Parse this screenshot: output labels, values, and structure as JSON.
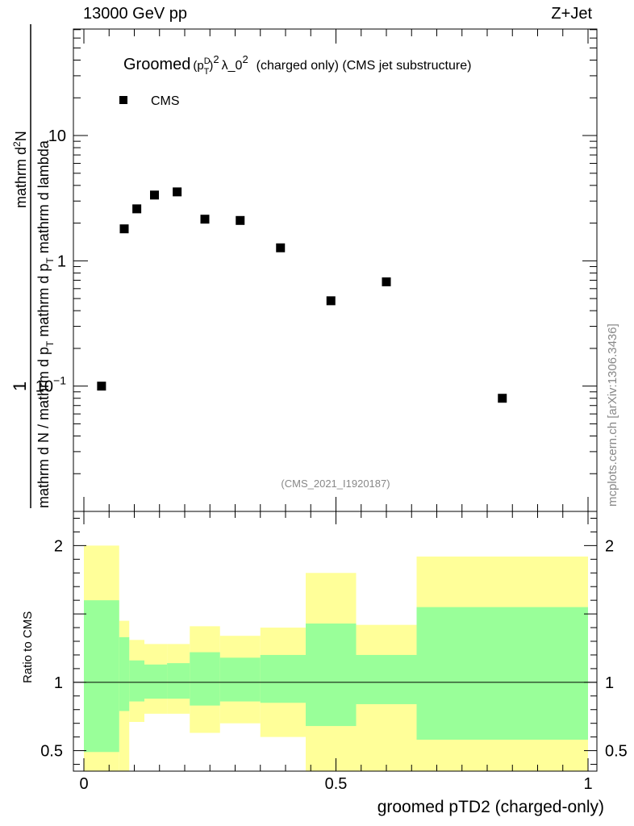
{
  "header": {
    "energy_label": "13000 GeV pp",
    "process_label": "Z+Jet"
  },
  "chart_data": {
    "type": "scatter",
    "title": "Groomed (p_T^D)^2 λ_0^2 (charged only) (CMS jet substructure)",
    "title_parts": {
      "prefix": "Groomed",
      "p": "p",
      "sup_d": "D",
      "sub_t": "T",
      "pow1": "2",
      "lam": "λ_0",
      "pow2": "2",
      "rest": "(charged only) (CMS jet substructure)"
    },
    "xlabel": "groomed pTD2 (charged-only)",
    "ylabel": {
      "num": "1",
      "den_a": "mathrm d N / mathrm d p",
      "den_sub1": "T",
      "den_b": " mathrm d p",
      "den_sub2": "T",
      "den_c": " mathrm d lambda",
      "num_top": "mathrm d",
      "num_sup": "2",
      "num_end": "N",
      "full": "mathrm d N / mathrm d p_T mathrm d p_T mathrm d lambda"
    },
    "xlim": [
      0,
      1
    ],
    "ylim_log10": [
      -2.0,
      1.85
    ],
    "y_scale": "log",
    "x_ticks": [
      "0",
      "0.5",
      "1"
    ],
    "x_tick_values": [
      0,
      0.5,
      1
    ],
    "y_ticks": [
      "10",
      "1",
      "10^-1"
    ],
    "y_tick_values": [
      10,
      1,
      0.1
    ],
    "y_tick_label_parts": [
      {
        "base": "10",
        "exp": ""
      },
      {
        "base": "1",
        "exp": ""
      },
      {
        "base": "10",
        "exp": "−1"
      }
    ],
    "legend": {
      "position": "top-left",
      "entries": [
        "CMS"
      ]
    },
    "analysis_label": "(CMS_2021_I1920187)",
    "watermark": "mcplots.cern.ch [arXiv:1306.3436]",
    "series": [
      {
        "name": "CMS",
        "x": [
          0.035,
          0.08,
          0.105,
          0.14,
          0.185,
          0.24,
          0.31,
          0.39,
          0.49,
          0.6,
          0.83
        ],
        "y": [
          0.1,
          1.8,
          2.6,
          3.35,
          3.55,
          2.15,
          2.1,
          1.27,
          0.48,
          0.68,
          0.08
        ]
      }
    ],
    "ratio": {
      "ylabel": "Ratio to CMS",
      "ylim": [
        0.35,
        2.25
      ],
      "y_ticks": [
        "2",
        "1",
        "0.5"
      ],
      "y_tick_values": [
        2,
        1,
        0.5
      ],
      "reference_line": 1,
      "bins": [
        {
          "x0": 0.0,
          "x1": 0.07,
          "green_lo": 0.49,
          "green_hi": 1.6,
          "yellow_lo": 0.35,
          "yellow_hi": 2.0
        },
        {
          "x0": 0.07,
          "x1": 0.09,
          "green_lo": 0.79,
          "green_hi": 1.33,
          "yellow_lo": 0.35,
          "yellow_hi": 1.45
        },
        {
          "x0": 0.09,
          "x1": 0.12,
          "green_lo": 0.86,
          "green_hi": 1.16,
          "yellow_lo": 0.71,
          "yellow_hi": 1.31
        },
        {
          "x0": 0.12,
          "x1": 0.165,
          "green_lo": 0.88,
          "green_hi": 1.13,
          "yellow_lo": 0.77,
          "yellow_hi": 1.28
        },
        {
          "x0": 0.165,
          "x1": 0.21,
          "green_lo": 0.88,
          "green_hi": 1.14,
          "yellow_lo": 0.77,
          "yellow_hi": 1.28
        },
        {
          "x0": 0.21,
          "x1": 0.27,
          "green_lo": 0.83,
          "green_hi": 1.22,
          "yellow_lo": 0.63,
          "yellow_hi": 1.41
        },
        {
          "x0": 0.27,
          "x1": 0.35,
          "green_lo": 0.86,
          "green_hi": 1.18,
          "yellow_lo": 0.7,
          "yellow_hi": 1.34
        },
        {
          "x0": 0.35,
          "x1": 0.44,
          "green_lo": 0.85,
          "green_hi": 1.2,
          "yellow_lo": 0.6,
          "yellow_hi": 1.4
        },
        {
          "x0": 0.44,
          "x1": 0.54,
          "green_lo": 0.68,
          "green_hi": 1.43,
          "yellow_lo": 0.35,
          "yellow_hi": 1.8
        },
        {
          "x0": 0.54,
          "x1": 0.66,
          "green_lo": 0.84,
          "green_hi": 1.2,
          "yellow_lo": 0.35,
          "yellow_hi": 1.42
        },
        {
          "x0": 0.66,
          "x1": 1.0,
          "green_lo": 0.58,
          "green_hi": 1.55,
          "yellow_lo": 0.35,
          "yellow_hi": 1.92
        }
      ]
    },
    "colors": {
      "green_band": "#99ff99",
      "yellow_band": "#ffff99",
      "marker": "#000000",
      "watermark": "#888888"
    }
  }
}
